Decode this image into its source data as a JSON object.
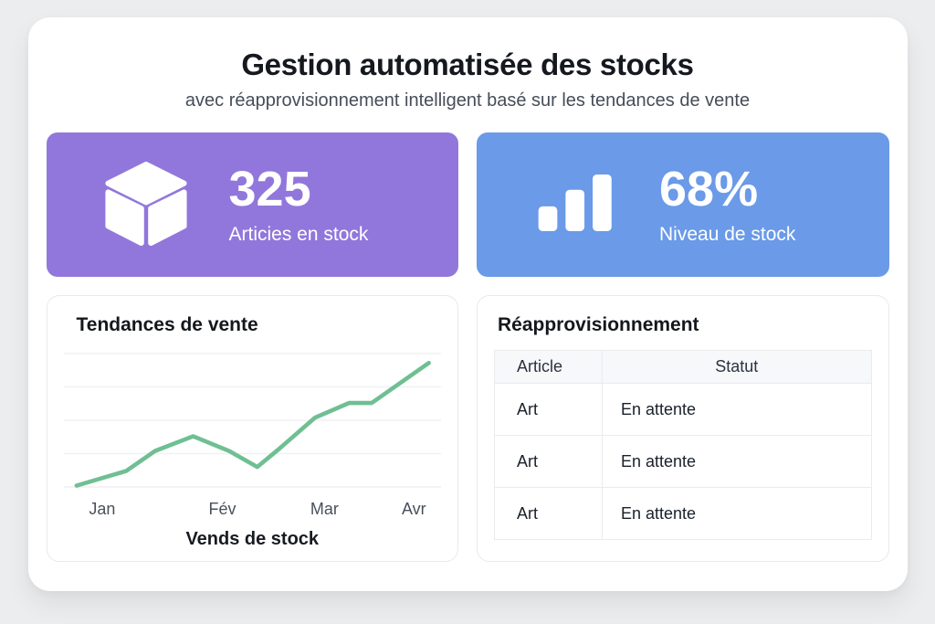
{
  "page": {
    "title": "Gestion automatisée des stocks",
    "subtitle": "avec réapprovisionnement intelligent basé sur les tendances de vente"
  },
  "colors": {
    "stat_purple": "#9177DB",
    "stat_blue": "#6A9AE8",
    "line_green": "#6FBF93",
    "gridline": "#F0F1F3",
    "page_background": "#ECEDEF"
  },
  "stats": [
    {
      "value": "325",
      "label": "Articies en stock",
      "icon": "cube-icon",
      "bg": "#9177DB"
    },
    {
      "value": "68%",
      "label": "Niveau de stock",
      "icon": "bar-chart-icon",
      "bg": "#6A9AE8"
    }
  ],
  "trend_card": {
    "title": "Tendances de vente",
    "xlabel": "Vends de stock"
  },
  "restock_card": {
    "title": "Réapprovisionnement",
    "columns": [
      "Article",
      "Statut"
    ],
    "rows": [
      [
        "Art",
        "En attente"
      ],
      [
        "Art",
        "En attente"
      ],
      [
        "Art",
        "En attente"
      ]
    ]
  },
  "chart_data": {
    "type": "line",
    "title": "Tendances de vente",
    "xlabel": "Vends de stock",
    "x_tick_labels": [
      "Jan",
      "Fév",
      "Mar",
      "Avr"
    ],
    "tick_x_percent": [
      7.4,
      41.5,
      70.5,
      95.9
    ],
    "points": [
      {
        "x": 0,
        "y": 1
      },
      {
        "x": 14.1,
        "y": 12
      },
      {
        "x": 22.3,
        "y": 27
      },
      {
        "x": 33.1,
        "y": 38
      },
      {
        "x": 43.3,
        "y": 27
      },
      {
        "x": 51.3,
        "y": 15
      },
      {
        "x": 57.7,
        "y": 29
      },
      {
        "x": 67.7,
        "y": 52
      },
      {
        "x": 77.4,
        "y": 63
      },
      {
        "x": 83.8,
        "y": 63
      },
      {
        "x": 100,
        "y": 93
      }
    ],
    "ylim": [
      0,
      100
    ],
    "gridline_values": [
      0,
      25,
      50,
      75,
      100
    ],
    "grid": "horizontal-only",
    "legend": "none",
    "line_color": "#6FBF93"
  }
}
